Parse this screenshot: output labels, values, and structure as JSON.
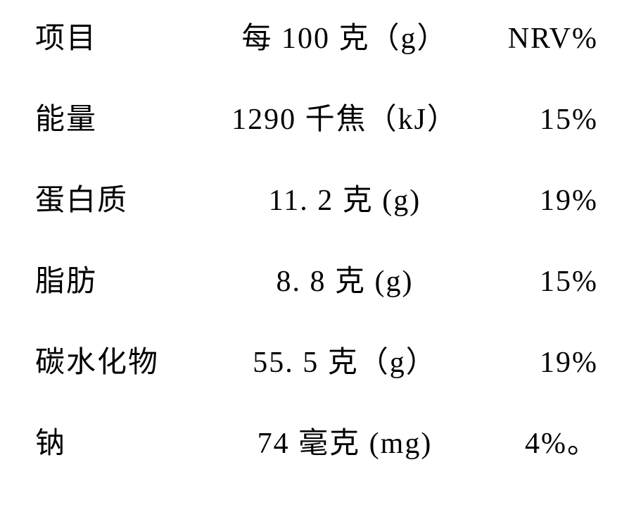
{
  "table": {
    "font_family": "SimSun/Songti serif",
    "font_size_pt": 32,
    "text_color": "#000000",
    "background_color": "#ffffff",
    "columns": [
      "项目",
      "每 100 克（g）",
      "NRV%"
    ],
    "col_align": [
      "left",
      "center",
      "right"
    ],
    "rows": [
      {
        "item": "能量",
        "amount": "1290 千焦（kJ）",
        "nrv": "15%"
      },
      {
        "item": "蛋白质",
        "amount": "11. 2 克 (g)",
        "nrv": "19%"
      },
      {
        "item": "脂肪",
        "amount": "8. 8 克 (g)",
        "nrv": "15%"
      },
      {
        "item": "碳水化物",
        "amount": "55. 5 克（g）",
        "nrv": "19%"
      },
      {
        "item": "钠",
        "amount": "74 毫克 (mg)",
        "nrv": "4%。"
      }
    ]
  }
}
